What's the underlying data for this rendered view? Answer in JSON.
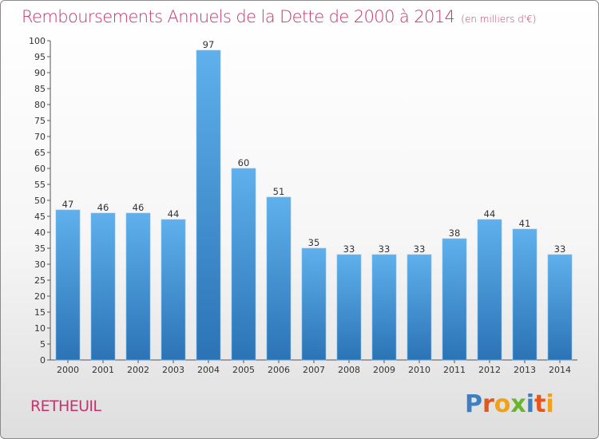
{
  "header": {
    "title": "Remboursements Annuels de la Dette de 2000 à 2014",
    "subtitle": "(en milliers d'€)"
  },
  "footer": {
    "city": "RETHEUIL",
    "brand_letters": [
      {
        "ch": "P",
        "color": "#3d7fc3"
      },
      {
        "ch": "r",
        "color": "#e3561c"
      },
      {
        "ch": "o",
        "color": "#f0a11a"
      },
      {
        "ch": "x",
        "color": "#6ab42f"
      },
      {
        "ch": "i",
        "color": "#3d7fc3"
      },
      {
        "ch": "t",
        "color": "#e3561c"
      },
      {
        "ch": "i",
        "color": "#f0a11a"
      }
    ]
  },
  "chart_data": {
    "type": "bar",
    "title": "Remboursements Annuels de la Dette de 2000 à 2014",
    "subtitle": "(en milliers d'€)",
    "categories": [
      "2000",
      "2001",
      "2002",
      "2003",
      "2004",
      "2005",
      "2006",
      "2007",
      "2008",
      "2009",
      "2010",
      "2011",
      "2012",
      "2013",
      "2014"
    ],
    "values": [
      47,
      46,
      46,
      44,
      97,
      60,
      51,
      35,
      33,
      33,
      33,
      38,
      44,
      41,
      33
    ],
    "ylim": [
      0,
      100
    ],
    "ytick_step": 5,
    "grid": false,
    "bar_color": "#4a9ad8"
  }
}
